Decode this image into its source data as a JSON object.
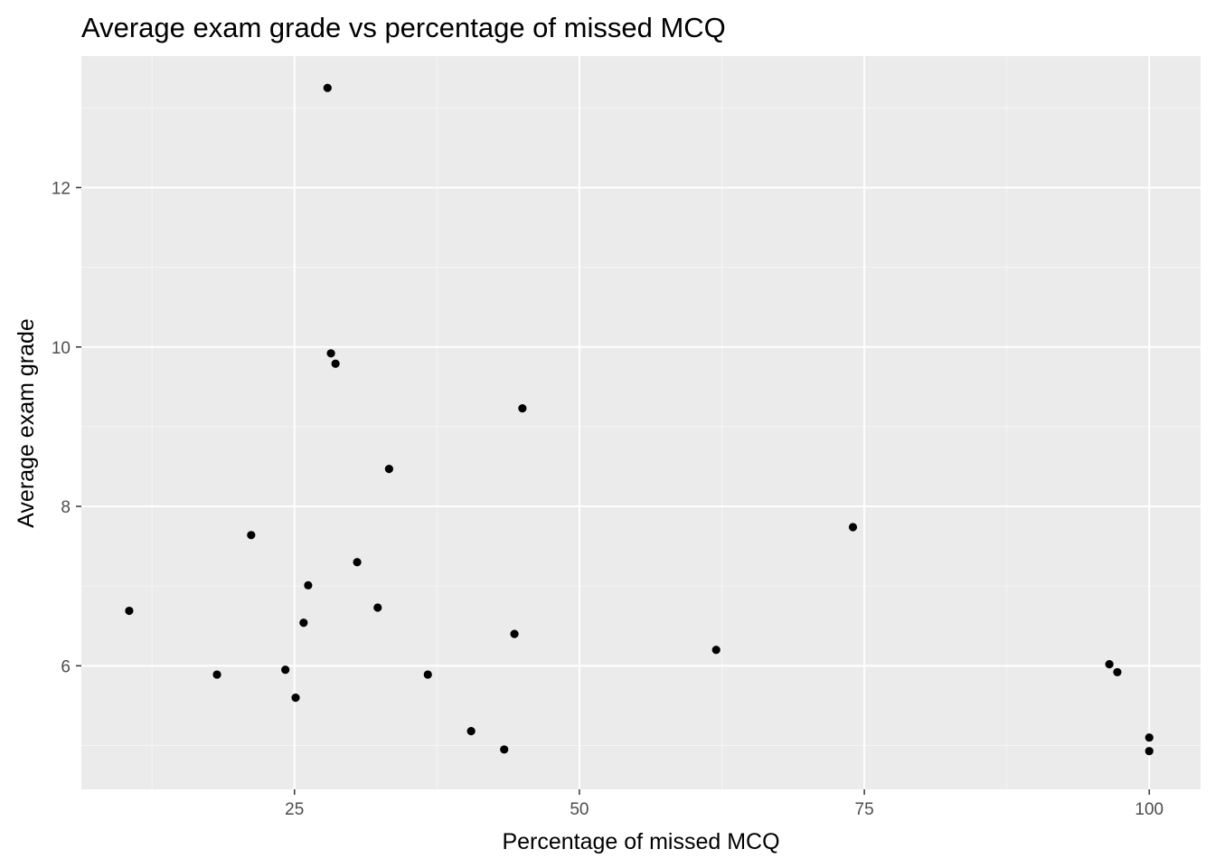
{
  "chart_data": {
    "type": "scatter",
    "title": "Average exam grade vs percentage of missed MCQ",
    "xlabel": "Percentage of missed MCQ",
    "ylabel": "Average exam grade",
    "xlim": [
      6.3,
      104.5
    ],
    "ylim": [
      4.45,
      13.65
    ],
    "x_ticks": [
      25,
      50,
      75,
      100
    ],
    "x_minor_ticks": [
      12.5,
      37.5,
      62.5,
      87.5
    ],
    "y_ticks": [
      6,
      8,
      10,
      12
    ],
    "y_minor_ticks": [
      5,
      7,
      9,
      11,
      13
    ],
    "grid": true,
    "points": [
      {
        "x": 27.9,
        "y": 13.25
      },
      {
        "x": 28.2,
        "y": 9.92
      },
      {
        "x": 28.6,
        "y": 9.79
      },
      {
        "x": 45.0,
        "y": 9.23
      },
      {
        "x": 33.3,
        "y": 8.47
      },
      {
        "x": 74.0,
        "y": 7.74
      },
      {
        "x": 21.2,
        "y": 7.64
      },
      {
        "x": 30.5,
        "y": 7.3
      },
      {
        "x": 26.2,
        "y": 7.01
      },
      {
        "x": 10.5,
        "y": 6.69
      },
      {
        "x": 32.3,
        "y": 6.73
      },
      {
        "x": 25.8,
        "y": 6.54
      },
      {
        "x": 44.3,
        "y": 6.4
      },
      {
        "x": 62.0,
        "y": 6.2
      },
      {
        "x": 96.5,
        "y": 6.02
      },
      {
        "x": 97.2,
        "y": 5.92
      },
      {
        "x": 18.2,
        "y": 5.89
      },
      {
        "x": 24.2,
        "y": 5.95
      },
      {
        "x": 36.7,
        "y": 5.89
      },
      {
        "x": 25.1,
        "y": 5.6
      },
      {
        "x": 40.5,
        "y": 5.18
      },
      {
        "x": 43.4,
        "y": 4.95
      },
      {
        "x": 100.0,
        "y": 5.1
      },
      {
        "x": 100.0,
        "y": 4.93
      }
    ],
    "colors": {
      "panel_background": "#ebebeb",
      "grid_major": "#ffffff",
      "grid_minor": "#f5f5f5",
      "point": "#000000",
      "tick_label": "#4d4d4d",
      "tick_mark": "#333333"
    }
  }
}
